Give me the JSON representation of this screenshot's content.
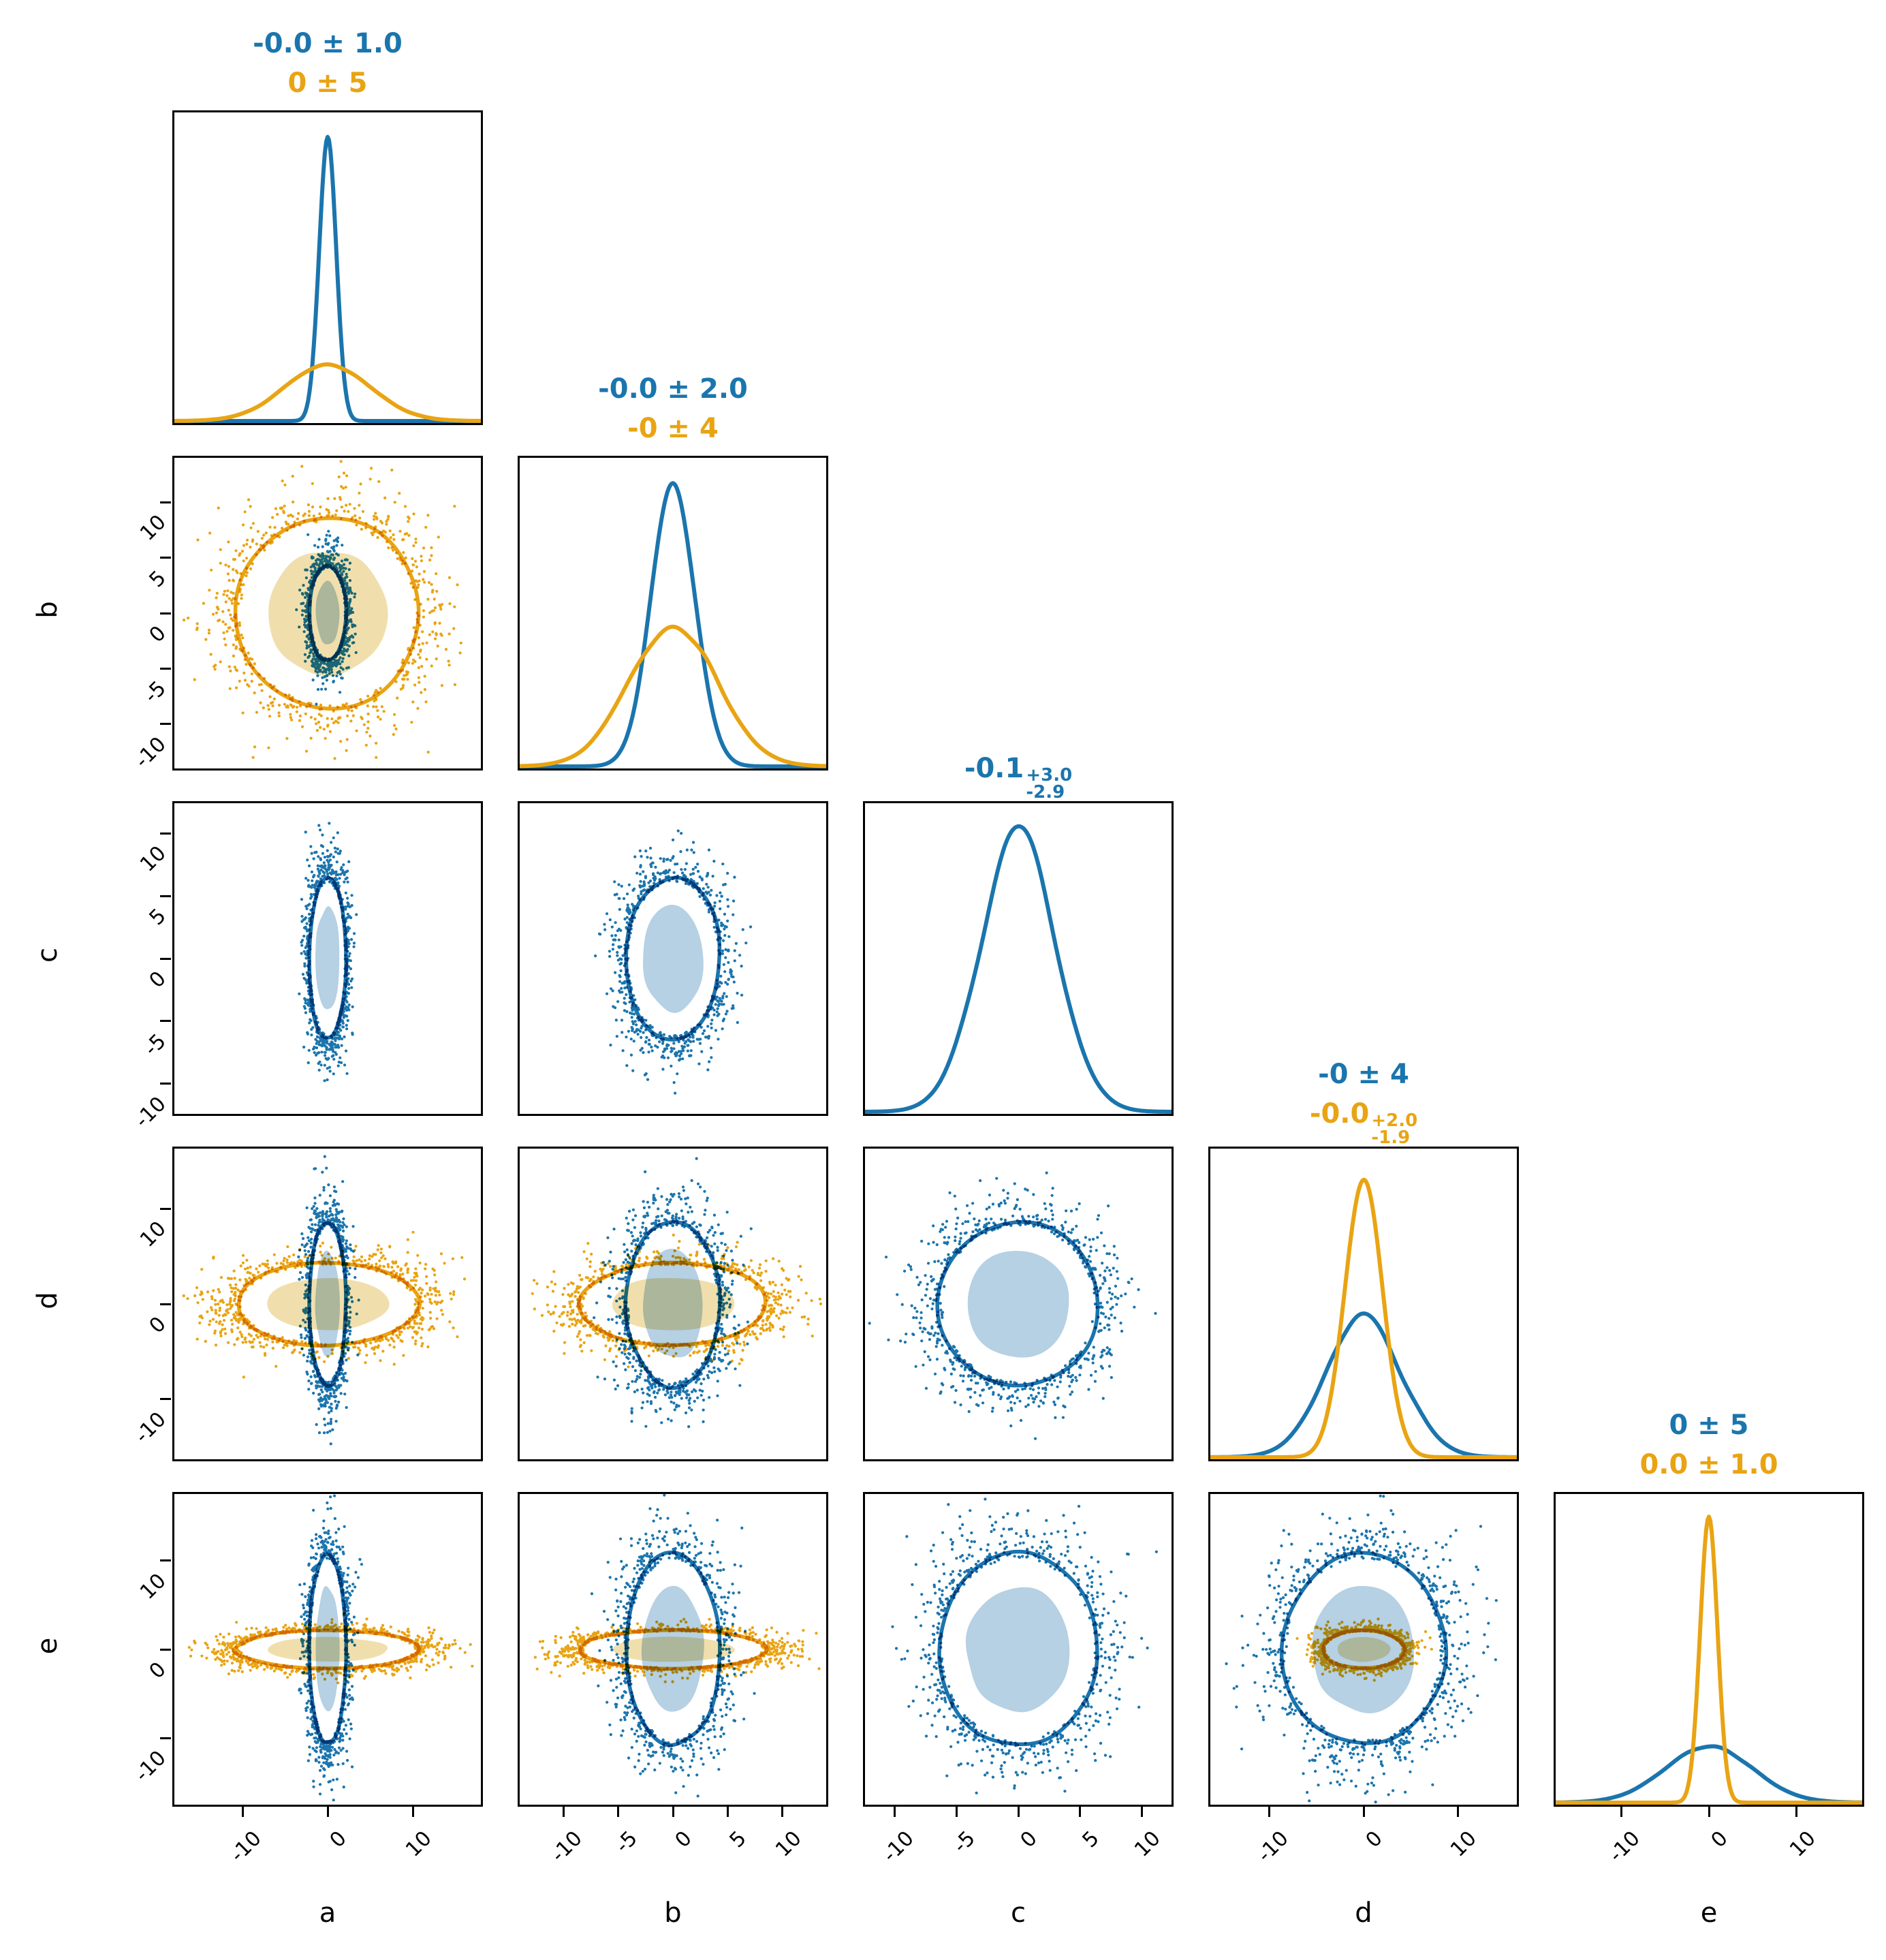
{
  "figure": {
    "background": "#ffffff",
    "border_color": "#000000",
    "colors": {
      "blue": "#1b75ad",
      "orange": "#e9a413",
      "blue_fill": "#b6d0e4",
      "orange_fill": "#f0dfad"
    }
  },
  "chart_data": {
    "type": "scatter",
    "subtype": "corner-plot-2-chains",
    "variables": [
      "a",
      "b",
      "c",
      "d",
      "e"
    ],
    "axis_labels": {
      "bottom": [
        "a",
        "b",
        "c",
        "d",
        "e"
      ],
      "left": [
        "b",
        "c",
        "d",
        "e"
      ]
    },
    "axis_ranges": {
      "a": [
        -18,
        18
      ],
      "b": [
        -14,
        14
      ],
      "c": [
        -12.4,
        12.4
      ],
      "d": [
        -16.3,
        16.3
      ],
      "e": [
        -17.5,
        17.5
      ]
    },
    "ticks": {
      "a": [
        -10,
        0,
        10
      ],
      "b": [
        -10,
        -5,
        0,
        5,
        10
      ],
      "c": [
        -10,
        -5,
        0,
        5,
        10
      ],
      "d": [
        -10,
        0,
        10
      ],
      "e": [
        -10,
        0,
        10
      ]
    },
    "datasets": [
      {
        "name": "blue",
        "color": "#1b75ad",
        "fill": "#b6d0e4",
        "params": {
          "a": {
            "mu": 0,
            "sigma": 1.0
          },
          "b": {
            "mu": 0,
            "sigma": 2.0
          },
          "c": {
            "mu": 0,
            "sigma": 3.0
          },
          "d": {
            "mu": 0,
            "sigma": 4.0
          },
          "e": {
            "mu": 0,
            "sigma": 5.0
          }
        }
      },
      {
        "name": "orange",
        "color": "#e9a413",
        "fill": "#f0dfad",
        "params": {
          "a": {
            "mu": 0,
            "sigma": 5.0
          },
          "b": {
            "mu": 0,
            "sigma": 4.0
          },
          "d": {
            "mu": 0,
            "sigma": 2.0
          },
          "e": {
            "mu": 0,
            "sigma": 1.0
          }
        }
      }
    ],
    "titles": {
      "a": [
        {
          "dataset": "blue",
          "main": "-0.0 ± 1.0"
        },
        {
          "dataset": "orange",
          "main": "0 ± 5"
        }
      ],
      "b": [
        {
          "dataset": "blue",
          "main": "-0.0 ± 2.0"
        },
        {
          "dataset": "orange",
          "main": "-0 ± 4"
        }
      ],
      "c": [
        {
          "dataset": "blue",
          "main": "-0.1",
          "sup": "+3.0",
          "sub": "-2.9"
        }
      ],
      "d": [
        {
          "dataset": "blue",
          "main": "-0 ± 4"
        },
        {
          "dataset": "orange",
          "main": "-0.0",
          "sup": "+2.0",
          "sub": "-1.9"
        }
      ],
      "e": [
        {
          "dataset": "blue",
          "main": "0 ± 5"
        },
        {
          "dataset": "orange",
          "main": "0.0 ± 1.0"
        }
      ]
    },
    "contour_levels_sigma": {
      "filled": 1.4,
      "line": 2.15
    },
    "scatter_outside_sigma": 2.05
  }
}
